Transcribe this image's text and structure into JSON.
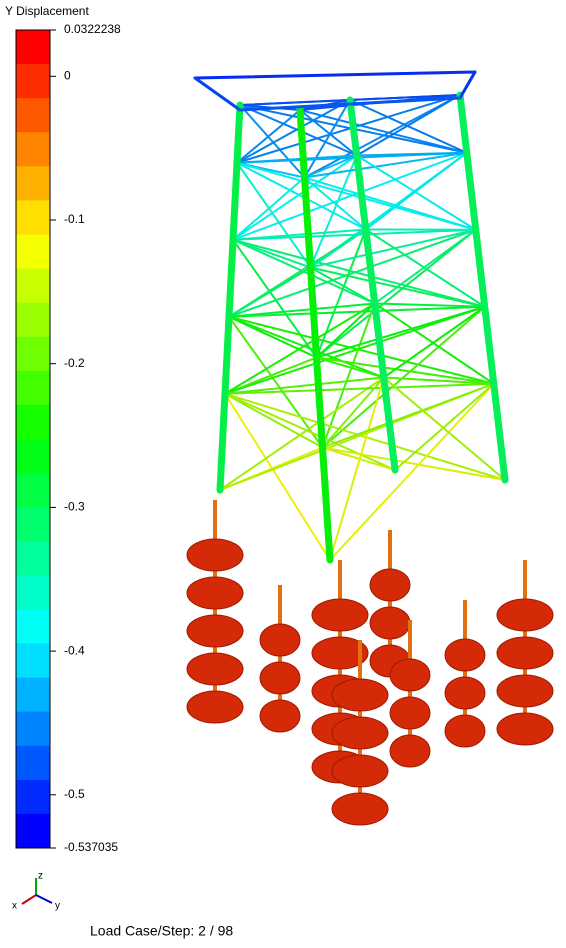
{
  "legend": {
    "title": "Y Displacement",
    "max": 0.0322238,
    "min": -0.537035,
    "ticks": [
      0,
      -0.1,
      -0.2,
      -0.3,
      -0.4,
      -0.5
    ]
  },
  "triad": {
    "z": "z",
    "x": "x",
    "y": "y"
  },
  "footer": "Load Case/Step: 2 / 98"
}
